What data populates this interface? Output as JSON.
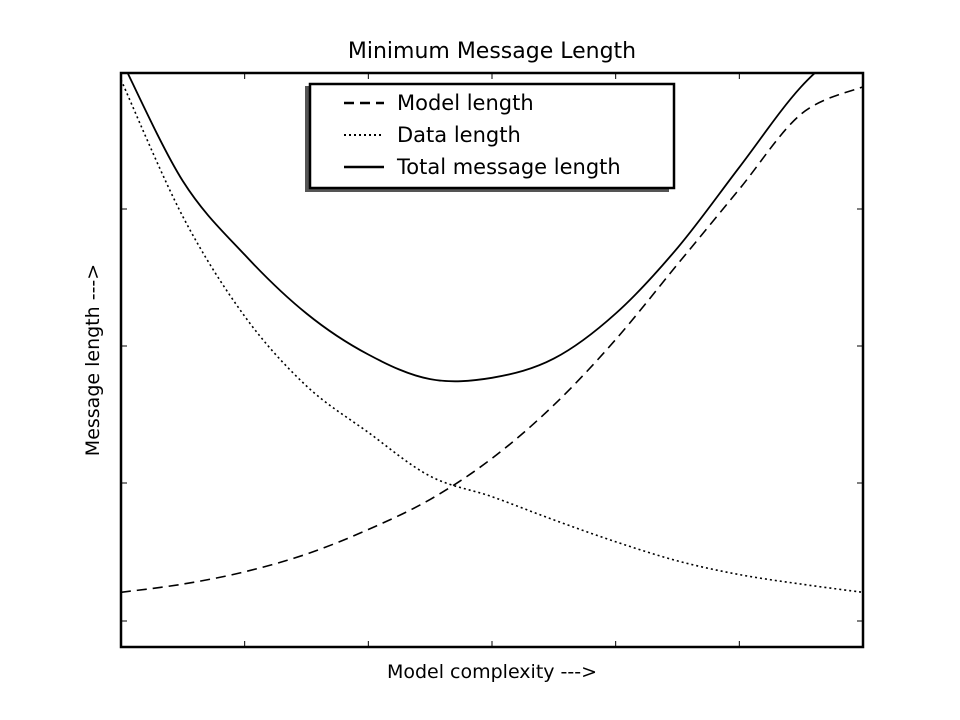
{
  "chart_data": {
    "type": "line",
    "title": "Minimum Message Length",
    "xlabel": "Model complexity --->",
    "ylabel": "Message length --->",
    "x_ticks_labeled": false,
    "y_ticks_labeled": false,
    "xlim": [
      0,
      6
    ],
    "ylim": [
      0,
      4.2
    ],
    "grid": false,
    "legend": {
      "placement": "top-center",
      "shadow": true
    },
    "x": [
      0,
      0.5,
      1,
      1.5,
      2,
      2.5,
      3,
      3.5,
      4,
      4.5,
      5,
      5.5,
      6
    ],
    "series": [
      {
        "name": "Model length",
        "style": "dashed",
        "values": [
          0.4,
          0.46,
          0.55,
          0.68,
          0.86,
          1.08,
          1.38,
          1.77,
          2.25,
          2.8,
          3.35,
          3.9,
          4.1
        ]
      },
      {
        "name": "Data length",
        "style": "dotted",
        "values": [
          4.15,
          3.15,
          2.42,
          1.91,
          1.57,
          1.25,
          1.1,
          0.93,
          0.77,
          0.63,
          0.53,
          0.46,
          0.4
        ]
      },
      {
        "name": "Total message length",
        "style": "solid",
        "values": [
          4.3,
          3.41,
          2.87,
          2.44,
          2.14,
          1.96,
          1.97,
          2.11,
          2.44,
          2.92,
          3.51,
          4.1,
          4.5
        ]
      }
    ]
  }
}
